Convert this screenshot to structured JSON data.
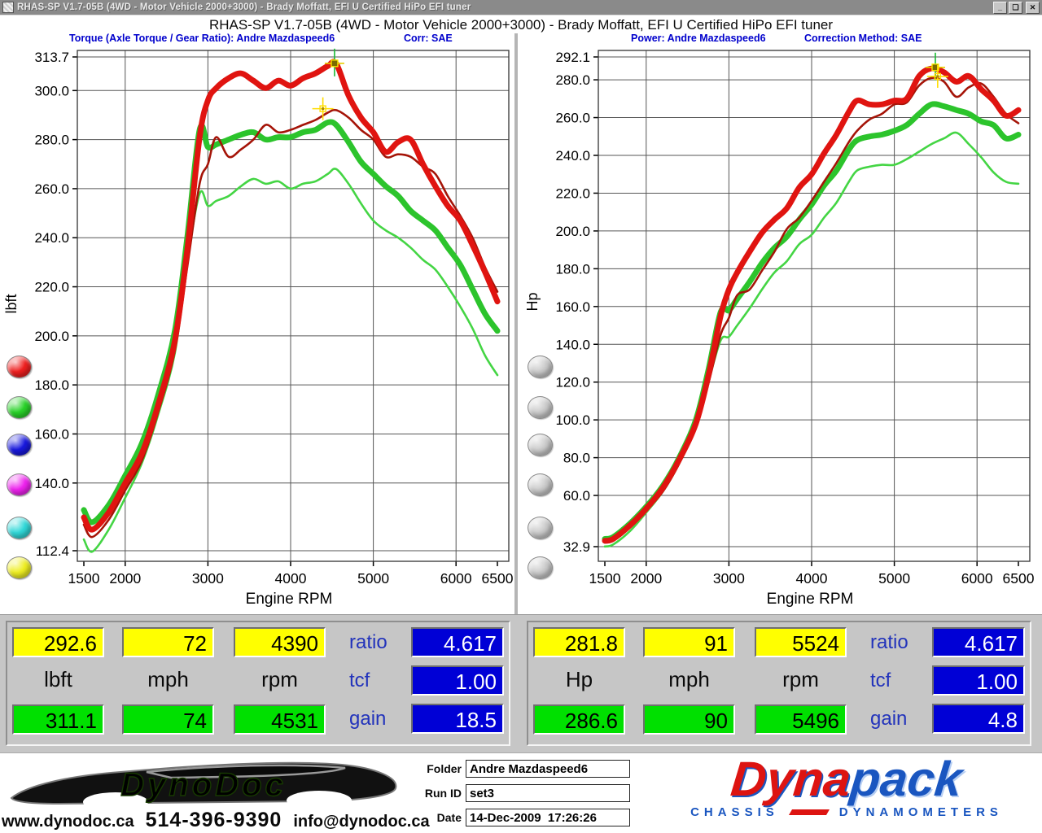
{
  "window": {
    "title": "RHAS-SP V1.7-05B   (4WD - Motor Vehicle 2000+3000) - Brady Moffatt, EFI U Certified HiPo EFI tuner",
    "buttons": {
      "minimize": "_",
      "restore": "❏",
      "close": "✕"
    }
  },
  "header": {
    "title": "RHAS-SP V1.7-05B   (4WD - Motor Vehicle 2000+3000) - Brady Moffatt, EFI U Certified HiPo EFI tuner"
  },
  "panels": {
    "torque": {
      "subtitle_left": "Torque (Axle Torque / Gear Ratio): Andre Mazdaspeed6",
      "subtitle_right": "Corr: SAE"
    },
    "power": {
      "subtitle_left": "Power: Andre Mazdaspeed6",
      "subtitle_right": "Correction Method: SAE"
    }
  },
  "legend_buttons": {
    "left": [
      {
        "name": "red",
        "color": "#ee2020"
      },
      {
        "name": "green",
        "color": "#28d228"
      },
      {
        "name": "blue",
        "color": "#1818dd"
      },
      {
        "name": "magenta",
        "color": "#ee22ee"
      },
      {
        "name": "cyan",
        "color": "#30d8d8"
      },
      {
        "name": "yellow",
        "color": "#eeee22"
      }
    ],
    "right": [
      {
        "name": "disabled-1",
        "color": "#cbcbcb"
      },
      {
        "name": "disabled-2",
        "color": "#cbcbcb"
      },
      {
        "name": "disabled-3",
        "color": "#cbcbcb"
      },
      {
        "name": "disabled-4",
        "color": "#cbcbcb"
      },
      {
        "name": "disabled-5",
        "color": "#cbcbcb"
      },
      {
        "name": "disabled-6",
        "color": "#cbcbcb"
      }
    ]
  },
  "chart_data": [
    {
      "type": "line",
      "title": "Torque (Axle Torque / Gear Ratio): Andre Mazdaspeed6",
      "xlabel": "Engine RPM",
      "ylabel": "lbft",
      "xlim": [
        1500,
        6500
      ],
      "ylim": [
        112.4,
        313.7
      ],
      "grid": true,
      "x_ticks": [
        1500,
        2000,
        3000,
        4000,
        5000,
        6000,
        6500
      ],
      "y_ticks": [
        313.7,
        300.0,
        280.0,
        260.0,
        240.0,
        220.0,
        200.0,
        180.0,
        160.0,
        140.0,
        112.4
      ],
      "x": [
        1500,
        1600,
        1800,
        2000,
        2200,
        2400,
        2600,
        2750,
        2900,
        3000,
        3100,
        3250,
        3400,
        3550,
        3700,
        3850,
        4000,
        4150,
        4300,
        4450,
        4550,
        4700,
        4850,
        5000,
        5150,
        5300,
        5450,
        5600,
        5750,
        5900,
        6050,
        6200,
        6350,
        6500
      ],
      "series": [
        {
          "name": "torque-run2-main",
          "color": "#e01410",
          "thick": true,
          "values": [
            126,
            121,
            128,
            140,
            152,
            172,
            198,
            235,
            281,
            296,
            301,
            305,
            307,
            304,
            301,
            304,
            302,
            305,
            307,
            310,
            311,
            298,
            289,
            283,
            275,
            279,
            280,
            270,
            261,
            253,
            247,
            237,
            226,
            214
          ]
        },
        {
          "name": "torque-run1-main",
          "color": "#a51408",
          "thick": false,
          "values": [
            123,
            118,
            125,
            137,
            149,
            169,
            194,
            228,
            262,
            270,
            281,
            273,
            276,
            280,
            286,
            283,
            284,
            286,
            288,
            291,
            292,
            289,
            284,
            280,
            273,
            274,
            273,
            269,
            266,
            257,
            249,
            240,
            228,
            218
          ]
        },
        {
          "name": "torque-run2-alt",
          "color": "#2cc42c",
          "thick": true,
          "values": [
            129,
            124,
            131,
            143,
            156,
            176,
            202,
            240,
            284,
            277,
            278,
            280,
            282,
            283,
            280,
            281,
            281,
            283,
            284,
            287,
            286,
            279,
            271,
            266,
            261,
            257,
            251,
            247,
            243,
            236,
            229,
            219,
            209,
            202
          ]
        },
        {
          "name": "torque-run1-alt",
          "color": "#44d544",
          "thick": false,
          "values": [
            117,
            112,
            121,
            134,
            148,
            168,
            193,
            230,
            258,
            253,
            255,
            257,
            261,
            264,
            262,
            263,
            260,
            262,
            263,
            266,
            268,
            262,
            254,
            247,
            243,
            240,
            236,
            231,
            227,
            220,
            212,
            203,
            192,
            184
          ]
        }
      ],
      "cursors": [
        {
          "rpm": 4531,
          "value": 311.1,
          "style": "green"
        },
        {
          "rpm": 4390,
          "value": 292.6,
          "style": "yellow"
        }
      ]
    },
    {
      "type": "line",
      "title": "Power: Andre Mazdaspeed6",
      "xlabel": "Engine RPM",
      "ylabel": "Hp",
      "xlim": [
        1500,
        6500
      ],
      "ylim": [
        32.9,
        292.1
      ],
      "grid": true,
      "x_ticks": [
        1500,
        2000,
        3000,
        4000,
        5000,
        6000,
        6500
      ],
      "y_ticks": [
        292.1,
        280.0,
        260.0,
        240.0,
        220.0,
        200.0,
        180.0,
        160.0,
        140.0,
        120.0,
        100.0,
        80.0,
        60.0,
        32.9
      ],
      "x": [
        1500,
        1600,
        1800,
        2000,
        2200,
        2400,
        2600,
        2750,
        2900,
        3000,
        3100,
        3250,
        3400,
        3550,
        3700,
        3850,
        4000,
        4150,
        4300,
        4450,
        4550,
        4700,
        4850,
        5000,
        5150,
        5300,
        5450,
        5600,
        5750,
        5900,
        6050,
        6200,
        6350,
        6500
      ],
      "series": [
        {
          "name": "power-run2-main",
          "color": "#e01410",
          "thick": true,
          "values": [
            36,
            37,
            44,
            53,
            64,
            79,
            98,
            123,
            155,
            169,
            178,
            189,
            199,
            206,
            212,
            223,
            230,
            241,
            251,
            263,
            269,
            267,
            267,
            269,
            270,
            282,
            286,
            284,
            279,
            282,
            275,
            269,
            261,
            264
          ]
        },
        {
          "name": "power-run1-main",
          "color": "#a51408",
          "thick": false,
          "values": [
            35,
            36,
            43,
            52,
            62,
            77,
            96,
            119,
            145,
            154,
            166,
            169,
            179,
            189,
            201,
            207,
            216,
            226,
            236,
            247,
            253,
            259,
            262,
            267,
            268,
            277,
            281,
            279,
            271,
            276,
            278,
            271,
            262,
            257
          ]
        },
        {
          "name": "power-run2-alt",
          "color": "#2cc42c",
          "thick": true,
          "values": [
            37,
            38,
            45,
            54,
            65,
            80,
            100,
            126,
            157,
            158,
            164,
            173,
            183,
            191,
            197,
            206,
            214,
            224,
            232,
            243,
            248,
            250,
            251,
            253,
            256,
            262,
            267,
            266,
            264,
            262,
            258,
            256,
            249,
            251
          ]
        },
        {
          "name": "power-run1-alt",
          "color": "#44d544",
          "thick": false,
          "values": [
            33,
            34,
            41,
            51,
            62,
            77,
            96,
            120,
            142,
            144,
            150,
            159,
            169,
            178,
            184,
            193,
            198,
            207,
            215,
            226,
            232,
            234,
            235,
            235,
            238,
            242,
            246,
            249,
            252,
            246,
            239,
            231,
            226,
            225
          ]
        }
      ],
      "cursors": [
        {
          "rpm": 5496,
          "value": 286.6,
          "style": "green"
        },
        {
          "rpm": 5524,
          "value": 281.8,
          "style": "yellow"
        }
      ]
    }
  ],
  "readouts": {
    "torque": {
      "yellow": [
        "292.6",
        "72",
        "4390"
      ],
      "units": [
        "lbft",
        "mph",
        "rpm"
      ],
      "green": [
        "311.1",
        "74",
        "4531"
      ],
      "stats": {
        "ratio_label": "ratio",
        "ratio": "4.617",
        "tcf_label": "tcf",
        "tcf": "1.00",
        "gain_label": "gain",
        "gain": "18.5"
      }
    },
    "power": {
      "yellow": [
        "281.8",
        "91",
        "5524"
      ],
      "units": [
        "Hp",
        "mph",
        "rpm"
      ],
      "green": [
        "286.6",
        "90",
        "5496"
      ],
      "stats": {
        "ratio_label": "ratio",
        "ratio": "4.617",
        "tcf_label": "tcf",
        "tcf": "1.00",
        "gain_label": "gain",
        "gain": "4.8"
      }
    }
  },
  "footer": {
    "dynodoc": {
      "name": "DynoDoc",
      "website": "www.dynodoc.ca",
      "phone": "514-396-9390",
      "email": "info@dynodoc.ca"
    },
    "fields": [
      {
        "label": "Folder",
        "value": "Andre Mazdaspeed6"
      },
      {
        "label": "Run ID",
        "value": "set3"
      },
      {
        "label": "Date",
        "value": "14-Dec-2009  17:26:26"
      }
    ],
    "dynapack": {
      "name_red": "Dyna",
      "name_blue": "pack",
      "tagline_left": "CHASSIS",
      "tagline_right": "DYNAMOMETERS"
    }
  }
}
